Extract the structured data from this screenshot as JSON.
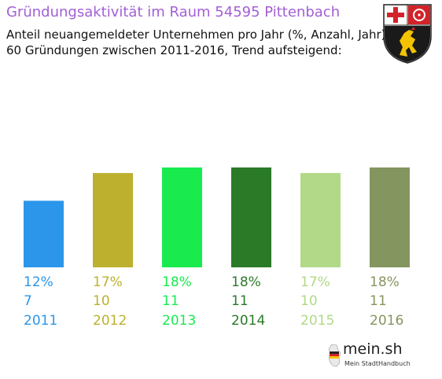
{
  "header": {
    "title": "Gründungsaktivität im Raum 54595 Pittenbach",
    "subtitle_line1": "Anteil neuangemeldeter Unternehmen pro Jahr (%, Anzahl, Jahr)",
    "subtitle_line2": "60 Gründungen zwischen 2011-2016, Trend aufsteigend:"
  },
  "crest": {
    "icon": "rhineland-palatinate-coat-of-arms-icon"
  },
  "logo": {
    "icon": "germany-map-icon",
    "name": "mein.sh",
    "tagline": "Mein StadtHandbuch"
  },
  "chart_data": {
    "type": "bar",
    "categories": [
      "2011",
      "2012",
      "2013",
      "2014",
      "2015",
      "2016"
    ],
    "series": [
      {
        "values": [
          12,
          17,
          18,
          18,
          17,
          18
        ]
      }
    ],
    "counts": [
      7,
      10,
      11,
      11,
      10,
      11
    ],
    "percent_labels": [
      "12%",
      "17%",
      "18%",
      "18%",
      "17%",
      "18%"
    ],
    "colors": [
      "#2b96ea",
      "#bdb02e",
      "#19eb4f",
      "#2a7a28",
      "#b1d987",
      "#85955f"
    ],
    "ylim": [
      0,
      18
    ],
    "grid": false,
    "legend": "none"
  }
}
